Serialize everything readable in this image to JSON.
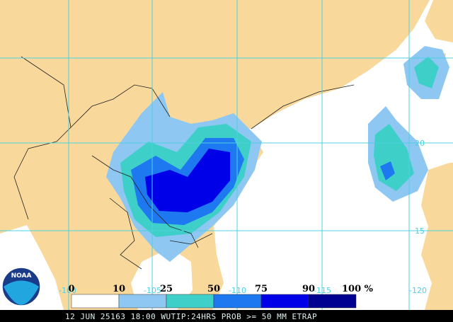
{
  "map": {
    "grid_labels": [
      "-100",
      "-105",
      "-110",
      "-115",
      "-120",
      "20",
      "15"
    ],
    "legend": {
      "labels": [
        "0",
        "10",
        "25",
        "50",
        "75",
        "90",
        "100 %"
      ],
      "colors": [
        "#ffffff",
        "#8ec8f2",
        "#3ed0c8",
        "#1e78f0",
        "#0000e8",
        "#000090"
      ]
    },
    "logo": "NOAA",
    "footer": "12 JUN 25163 18:00 WUTIP:24HRS PROB >= 50 MM ETRAP"
  }
}
